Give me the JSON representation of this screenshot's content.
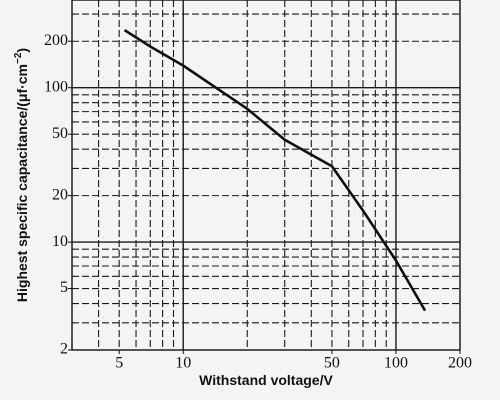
{
  "chart_data": {
    "type": "line",
    "x_label": "Withstand voltage/V",
    "y_label": {
      "main": "Highest specific capacitance/(μf·cm",
      "sup": "−2",
      "end": ")"
    },
    "log_x": true,
    "log_y": true,
    "xlim": [
      3,
      200
    ],
    "ylim": [
      2,
      370
    ],
    "xticks": [
      5,
      10,
      50,
      100,
      200
    ],
    "yticks": [
      2,
      5,
      10,
      20,
      50,
      100,
      200
    ],
    "x_grid": [
      4,
      5,
      6,
      7,
      8,
      9,
      10,
      20,
      30,
      40,
      50,
      60,
      70,
      80,
      90,
      100
    ],
    "y_grid": [
      3,
      4,
      5,
      6,
      7,
      8,
      9,
      10,
      20,
      30,
      40,
      50,
      60,
      70,
      80,
      90,
      100,
      200,
      300
    ],
    "grid": true,
    "series": [
      {
        "color": "#111111",
        "x": [
          5.3,
          7,
          10,
          20,
          30,
          50,
          70,
          100,
          137
        ],
        "values": [
          236,
          185,
          139,
          73,
          46,
          31,
          16,
          7.6,
          3.6
        ]
      }
    ]
  }
}
